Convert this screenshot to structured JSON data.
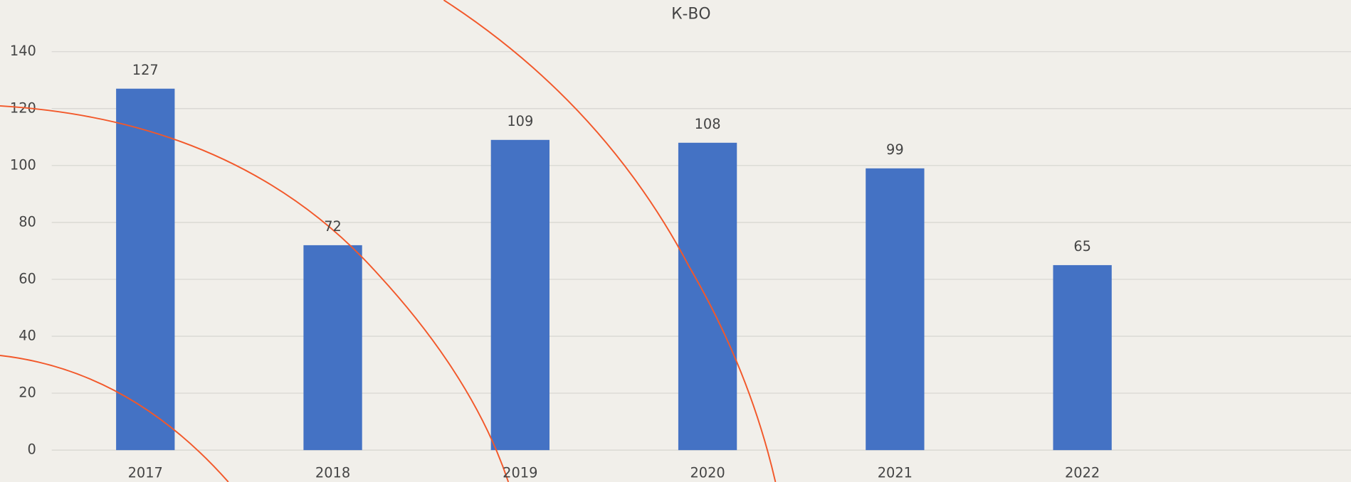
{
  "chart_data": {
    "type": "bar",
    "title": "К-ВО",
    "categories": [
      "2017",
      "2018",
      "2019",
      "2020",
      "2021",
      "2022"
    ],
    "values": [
      127,
      72,
      109,
      108,
      99,
      65
    ],
    "color": "#4472c4",
    "ylim": [
      0,
      140
    ],
    "yticks": [
      0,
      20,
      40,
      60,
      80,
      100,
      120,
      140
    ],
    "grid": true
  }
}
